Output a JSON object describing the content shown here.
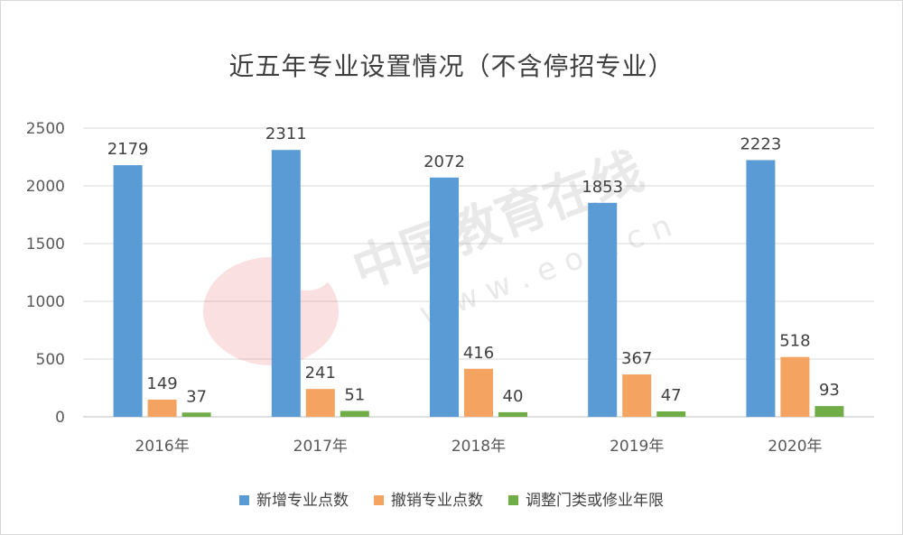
{
  "chart_data": {
    "type": "bar",
    "title": "近五年专业设置情况（不含停招专业）",
    "categories": [
      "2016年",
      "2017年",
      "2018年",
      "2019年",
      "2020年"
    ],
    "series": [
      {
        "name": "新增专业点数",
        "color": "#5b9bd5",
        "values": [
          2179,
          2311,
          2072,
          1853,
          2223
        ]
      },
      {
        "name": "撤销专业点数",
        "color": "#f4a460",
        "values": [
          149,
          241,
          416,
          367,
          518
        ]
      },
      {
        "name": "调整门类或修业年限",
        "color": "#70ad47",
        "values": [
          37,
          51,
          40,
          47,
          93
        ]
      }
    ],
    "yticks": [
      "0",
      "500",
      "1000",
      "1500",
      "2000",
      "2500"
    ],
    "ylim": [
      0,
      2500
    ],
    "grid": true,
    "legend": "bottom"
  },
  "watermark": {
    "logo_text": "eol",
    "text_cn": "中国教育在线",
    "text_url": "w w w . e o l . c n"
  }
}
